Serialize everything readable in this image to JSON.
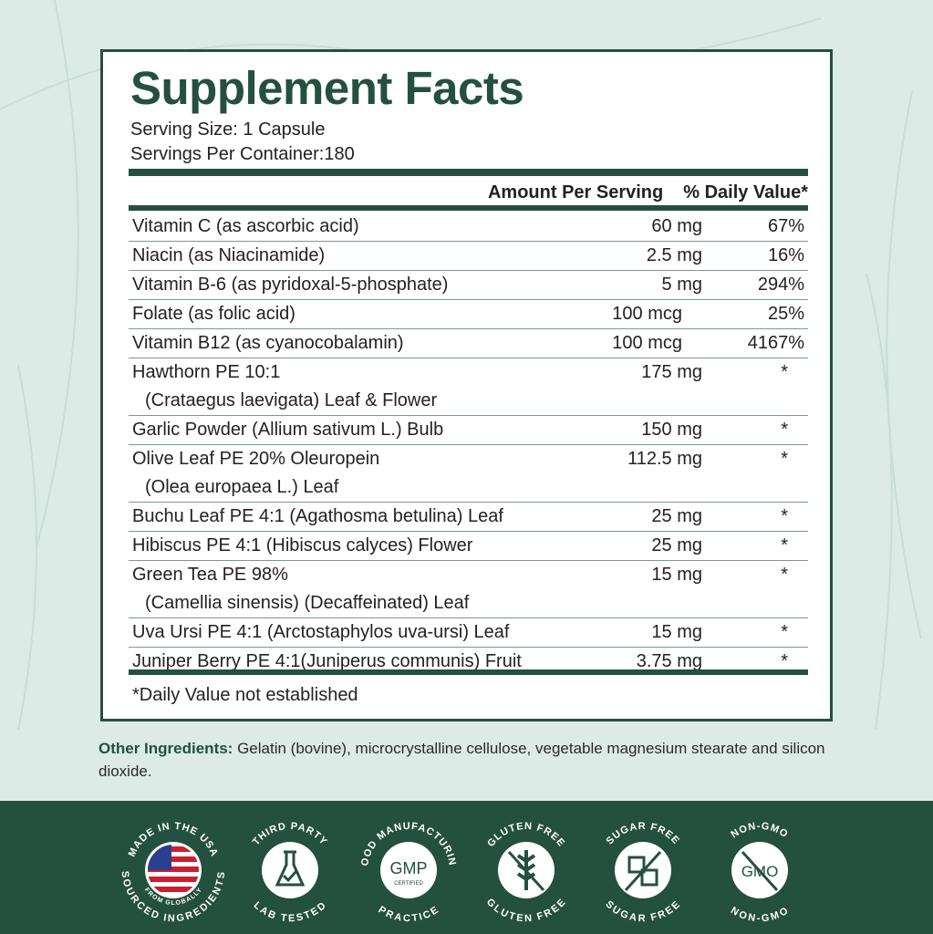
{
  "title": "Supplement Facts",
  "serving_size": "Serving Size: 1 Capsule",
  "servings_per_container": "Servings Per Container:180",
  "header": {
    "amount": "Amount Per Serving",
    "dv": "% Daily Value*"
  },
  "rows": [
    {
      "name": "Vitamin C (as ascorbic acid)",
      "amount": "60 mg",
      "dv": "67%"
    },
    {
      "name": "Niacin (as Niacinamide)",
      "amount": "2.5 mg",
      "dv": "16%"
    },
    {
      "name": "Vitamin B-6 (as pyridoxal-5-phosphate)",
      "amount": "5 mg",
      "dv": "294%"
    },
    {
      "name": "Folate (as folic acid)",
      "amount": "100 mcg",
      "dv": "25%"
    },
    {
      "name": "Vitamin B12 (as cyanocobalamin)",
      "amount": "100 mcg",
      "dv": "4167%"
    },
    {
      "name": "Hawthorn PE 10:1",
      "name2": "(Crataegus laevigata) Leaf & Flower",
      "amount": "175 mg",
      "dv": "*"
    },
    {
      "name": "Garlic Powder (Allium sativum L.) Bulb",
      "amount": "150 mg",
      "dv": "*"
    },
    {
      "name": "Olive Leaf PE 20% Oleuropein",
      "name2": "(Olea europaea L.) Leaf",
      "amount": "112.5 mg",
      "dv": "*"
    },
    {
      "name": "Buchu Leaf PE 4:1 (Agathosma betulina) Leaf",
      "amount": "25 mg",
      "dv": "*"
    },
    {
      "name": "Hibiscus PE 4:1 (Hibiscus calyces) Flower",
      "amount": "25 mg",
      "dv": "*"
    },
    {
      "name": "Green Tea PE 98%",
      "name2": "(Camellia sinensis) (Decaffeinated) Leaf",
      "amount": "15 mg",
      "dv": "*"
    },
    {
      "name": "Uva Ursi PE 4:1 (Arctostaphylos uva-ursi) Leaf",
      "amount": "15 mg",
      "dv": "*"
    },
    {
      "name": "Juniper Berry PE 4:1(Juniperus communis) Fruit",
      "amount": "3.75 mg",
      "dv": "*"
    }
  ],
  "footnote": "*Daily Value not established",
  "other_ingredients": {
    "label": "Other Ingredients:",
    "text": " Gelatin (bovine), microcrystalline cellulose, vegetable magnesium stearate and silicon dioxide."
  },
  "badges": [
    {
      "top": "MADE IN THE USA",
      "bottom": "SOURCED INGREDIENTS",
      "inner": "FROM GLOBALLY",
      "icon": "us-flag"
    },
    {
      "top": "THIRD PARTY",
      "bottom": "LAB TESTED",
      "icon": "flask-check"
    },
    {
      "top": "GOOD MANUFACTURING",
      "bottom": "PRACTICE",
      "inner": "GMP",
      "inner2": "CERTIFIED",
      "icon": "gmp"
    },
    {
      "top": "GLUTEN FREE",
      "bottom": "GLUTEN FREE",
      "icon": "wheat-crossed"
    },
    {
      "top": "SUGAR FREE",
      "bottom": "SUGAR FREE",
      "icon": "sugar-cubes-crossed"
    },
    {
      "top": "NON-GMO",
      "bottom": "NON-GMO",
      "inner": "GMO",
      "icon": "gmo-crossed"
    }
  ],
  "colors": {
    "brand": "#24503f",
    "background": "#dcebe5"
  }
}
